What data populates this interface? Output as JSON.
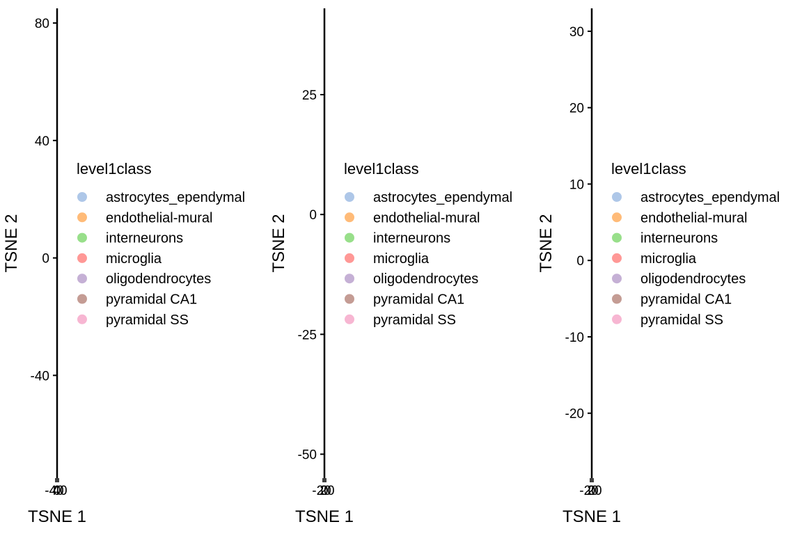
{
  "legend": {
    "title": "level1class",
    "entries": [
      {
        "label": "astrocytes_ependymal",
        "color": "#aec7e8"
      },
      {
        "label": "endothelial-mural",
        "color": "#ffbb78"
      },
      {
        "label": "interneurons",
        "color": "#98df8a"
      },
      {
        "label": "microglia",
        "color": "#ff9896"
      },
      {
        "label": "oligodendrocytes",
        "color": "#c5b0d5"
      },
      {
        "label": "pyramidal CA1",
        "color": "#c49c94"
      },
      {
        "label": "pyramidal SS",
        "color": "#f7b6d2"
      }
    ]
  },
  "chart_data": [
    {
      "type": "scatter",
      "xlabel": "TSNE 1",
      "ylabel": "TSNE 2",
      "ylim": [
        -75,
        85
      ],
      "yticks": [
        80,
        40,
        0,
        -40
      ],
      "ytick_labels": [
        "80",
        "40",
        "0",
        "-40"
      ],
      "xtick_labels": [
        "-40",
        "0",
        "40"
      ],
      "grid": false,
      "legend_position": "right",
      "points": []
    },
    {
      "type": "scatter",
      "xlabel": "TSNE 1",
      "ylabel": "TSNE 2",
      "ylim": [
        -55,
        43
      ],
      "yticks": [
        25,
        0,
        -25,
        -50
      ],
      "ytick_labels": [
        "25",
        "0",
        "-25",
        "-50"
      ],
      "xtick_labels": [
        "-20",
        "0",
        "20"
      ],
      "grid": false,
      "legend_position": "right",
      "points": []
    },
    {
      "type": "scatter",
      "xlabel": "TSNE 1",
      "ylabel": "TSNE 2",
      "ylim": [
        -28.5,
        33
      ],
      "yticks": [
        30,
        20,
        10,
        0,
        -10,
        -20
      ],
      "ytick_labels": [
        "30",
        "20",
        "10",
        "0",
        "-10",
        "-20"
      ],
      "xtick_labels": [
        "-20",
        "0",
        "20"
      ],
      "grid": false,
      "legend_position": "right",
      "points": []
    }
  ]
}
